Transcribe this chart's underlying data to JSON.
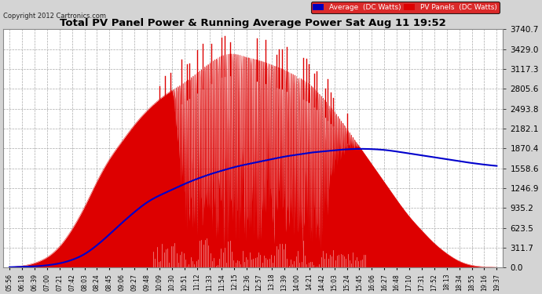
{
  "title": "Total PV Panel Power & Running Average Power Sat Aug 11 19:52",
  "copyright": "Copyright 2012 Cartronics.com",
  "legend_avg": "Average  (DC Watts)",
  "legend_pv": "PV Panels  (DC Watts)",
  "ymax": 3740.7,
  "yticks": [
    0.0,
    311.7,
    623.5,
    935.2,
    1246.9,
    1558.6,
    1870.4,
    2182.1,
    2493.8,
    2805.6,
    3117.3,
    3429.0,
    3740.7
  ],
  "background_color": "#d4d4d4",
  "plot_bg_color": "#ffffff",
  "pv_color": "#dd0000",
  "avg_color": "#0000cc",
  "grid_color": "#aaaaaa",
  "title_color": "#000000",
  "xtick_labels": [
    "05:56",
    "06:18",
    "06:39",
    "07:00",
    "07:21",
    "07:42",
    "08:03",
    "08:24",
    "08:45",
    "09:06",
    "09:27",
    "09:48",
    "10:09",
    "10:30",
    "10:51",
    "11:12",
    "11:33",
    "11:54",
    "12:15",
    "12:36",
    "12:57",
    "13:18",
    "13:39",
    "14:00",
    "14:21",
    "14:42",
    "15:03",
    "15:24",
    "15:45",
    "16:06",
    "16:27",
    "16:48",
    "17:10",
    "17:31",
    "17:52",
    "18:13",
    "18:34",
    "18:55",
    "19:16",
    "19:37"
  ],
  "n_xticks": 40,
  "avg_y": [
    5,
    10,
    18,
    35,
    65,
    120,
    210,
    350,
    520,
    700,
    870,
    1020,
    1130,
    1220,
    1310,
    1390,
    1460,
    1520,
    1575,
    1620,
    1660,
    1700,
    1740,
    1770,
    1800,
    1820,
    1840,
    1855,
    1862,
    1858,
    1845,
    1820,
    1790,
    1760,
    1730,
    1700,
    1668,
    1640,
    1615,
    1595
  ]
}
